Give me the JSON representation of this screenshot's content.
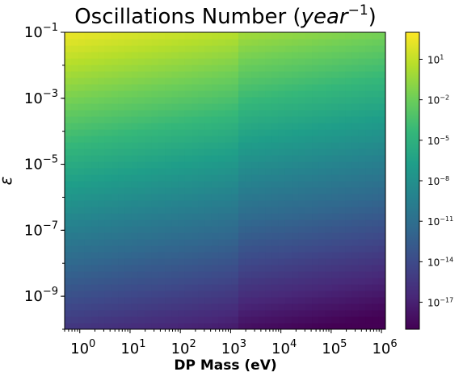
{
  "chart_data": {
    "type": "heatmap",
    "title": "Oscillations Number (",
    "title_math": "year",
    "title_exp": "−1",
    "title_close": ")",
    "xlabel": "DP Mass (eV)",
    "ylabel": "ε",
    "x_scale": "log",
    "y_scale": "log",
    "xlim": [
      0.5,
      1200000
    ],
    "ylim": [
      1e-10,
      0.1
    ],
    "x_ticks": [
      {
        "value": 1,
        "base": "10",
        "exp": "0"
      },
      {
        "value": 10,
        "base": "10",
        "exp": "1"
      },
      {
        "value": 100,
        "base": "10",
        "exp": "2"
      },
      {
        "value": 1000,
        "base": "10",
        "exp": "3"
      },
      {
        "value": 10000,
        "base": "10",
        "exp": "4"
      },
      {
        "value": 100000,
        "base": "10",
        "exp": "5"
      },
      {
        "value": 1000000,
        "base": "10",
        "exp": "6"
      }
    ],
    "y_ticks": [
      {
        "value": 1e-09,
        "base": "10",
        "exp": "−9"
      },
      {
        "value": 1e-07,
        "base": "10",
        "exp": "−7"
      },
      {
        "value": 1e-05,
        "base": "10",
        "exp": "−5"
      },
      {
        "value": 0.001,
        "base": "10",
        "exp": "−3"
      },
      {
        "value": 0.1,
        "base": "10",
        "exp": "−1"
      }
    ],
    "colorbar": {
      "scale": "log",
      "colormap": "viridis",
      "range": [
        1e-19,
        1000
      ],
      "ticks": [
        {
          "value": 1e-17,
          "base": "10",
          "exp": "−17"
        },
        {
          "value": 1e-14,
          "base": "10",
          "exp": "−14"
        },
        {
          "value": 1e-11,
          "base": "10",
          "exp": "−11"
        },
        {
          "value": 1e-08,
          "base": "10",
          "exp": "−8"
        },
        {
          "value": 1e-05,
          "base": "10",
          "exp": "−5"
        },
        {
          "value": 0.01,
          "base": "10",
          "exp": "−2"
        },
        {
          "value": 10,
          "base": "10",
          "exp": "1"
        }
      ]
    },
    "field": {
      "description_free_model": true,
      "log10_value_at_x_min_y_max": 2.5,
      "log10_value_at_x_min_y_min": -15.5,
      "log10_value_at_x_max_y_max": -1.0,
      "log10_value_at_x_max_y_min": -19.2,
      "knee_mass": 1500
    },
    "grid": false
  }
}
